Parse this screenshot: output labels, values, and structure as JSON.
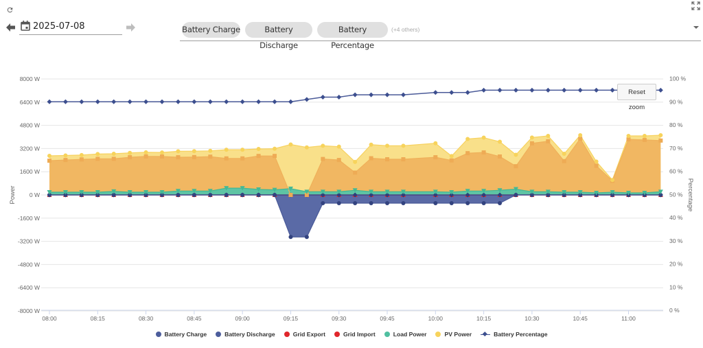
{
  "header": {
    "date": "2025-07-08",
    "chips": [
      "Battery Charge",
      "Battery Discharge",
      "Battery Percentage"
    ],
    "more_label": "(+4 others)",
    "icons": {
      "refresh": "refresh-icon",
      "prev": "arrow-left-icon",
      "calendar": "calendar-icon",
      "next": "arrow-right-icon",
      "dropdown": "chevron-down-icon",
      "fullscreen": "fullscreen-icon"
    }
  },
  "chart": {
    "reset_zoom_label": "Reset zoom"
  },
  "chart_data": {
    "type": "area",
    "title": "",
    "x": [
      "08:00",
      "08:05",
      "08:10",
      "08:15",
      "08:20",
      "08:25",
      "08:30",
      "08:35",
      "08:40",
      "08:45",
      "08:50",
      "08:55",
      "09:00",
      "09:05",
      "09:10",
      "09:15",
      "09:20",
      "09:25",
      "09:30",
      "09:35",
      "09:40",
      "09:45",
      "09:50",
      "09:55",
      "10:00",
      "10:05",
      "10:10",
      "10:15",
      "10:20",
      "10:25",
      "10:30",
      "10:35",
      "10:40",
      "10:45",
      "10:50",
      "10:55",
      "11:00",
      "11:05",
      "11:10"
    ],
    "x_axis": {
      "tick_labels": [
        "08:00",
        "08:15",
        "08:30",
        "08:45",
        "09:00",
        "09:15",
        "09:30",
        "09:45",
        "10:00",
        "10:15",
        "10:30",
        "10:45",
        "11:00"
      ]
    },
    "y_left": {
      "title": "Power",
      "unit": "W",
      "range": [
        -8000,
        8000
      ],
      "ticks": [
        8000,
        6400,
        4800,
        3200,
        1600,
        0,
        -1600,
        -3200,
        -4800,
        -6400,
        -8000
      ],
      "tick_labels": [
        "8000 W",
        "6400 W",
        "4800 W",
        "3200 W",
        "1600 W",
        "0 W",
        "-1600 W",
        "-3200 W",
        "-4800 W",
        "-6400 W",
        "-8000 W"
      ]
    },
    "y_right": {
      "title": "Percentage",
      "unit": "%",
      "range": [
        0,
        100
      ],
      "ticks": [
        100,
        90,
        80,
        70,
        60,
        50,
        40,
        30,
        20,
        10,
        0
      ],
      "tick_labels": [
        "100 %",
        "90 %",
        "80 %",
        "70 %",
        "60 %",
        "50 %",
        "40 %",
        "30 %",
        "20 %",
        "10 %",
        "0 %"
      ]
    },
    "grid": true,
    "legend": {
      "position": "bottom-center"
    },
    "series": [
      {
        "name": "Battery Charge",
        "type": "area",
        "axis": "left",
        "color": "#4c5d9c",
        "values": [
          0,
          0,
          0,
          0,
          0,
          0,
          0,
          0,
          0,
          0,
          0,
          0,
          0,
          0,
          0,
          -2900,
          -2900,
          -570,
          -570,
          -570,
          -570,
          -570,
          -570,
          null,
          -570,
          -570,
          -570,
          -570,
          -570,
          0,
          0,
          0,
          0,
          0,
          0,
          0,
          0,
          0,
          0
        ]
      },
      {
        "name": "Battery Discharge",
        "type": "area",
        "axis": "left",
        "color": "#4c5d9c",
        "values": [
          0,
          0,
          0,
          0,
          0,
          0,
          0,
          0,
          0,
          0,
          0,
          0,
          0,
          0,
          0,
          0,
          0,
          0,
          0,
          0,
          0,
          0,
          0,
          null,
          0,
          0,
          0,
          0,
          0,
          0,
          0,
          0,
          0,
          0,
          0,
          0,
          0,
          0,
          0
        ]
      },
      {
        "name": "Grid Export",
        "type": "area",
        "axis": "left",
        "color": "#e0262b",
        "values": [
          2360,
          2410,
          2450,
          2490,
          2490,
          2600,
          2660,
          2650,
          2600,
          2610,
          2640,
          2520,
          2520,
          2690,
          2690,
          0,
          0,
          2480,
          2410,
          1540,
          2530,
          2460,
          2460,
          null,
          2600,
          2380,
          2880,
          2930,
          2650,
          1980,
          3560,
          3700,
          2330,
          3880,
          2010,
          970,
          3830,
          3790,
          3750
        ]
      },
      {
        "name": "Grid Import",
        "type": "area",
        "axis": "left",
        "color": "#e0262b",
        "values": [
          0,
          0,
          0,
          0,
          0,
          0,
          0,
          0,
          0,
          0,
          0,
          0,
          0,
          0,
          0,
          0,
          0,
          0,
          0,
          0,
          0,
          0,
          0,
          null,
          0,
          0,
          0,
          0,
          0,
          0,
          0,
          0,
          0,
          0,
          0,
          0,
          0,
          0,
          0
        ]
      },
      {
        "name": "Load Power",
        "type": "area",
        "axis": "left",
        "color": "#4fbfa0",
        "values": [
          190,
          190,
          190,
          190,
          240,
          190,
          190,
          190,
          270,
          270,
          270,
          470,
          470,
          380,
          350,
          430,
          220,
          220,
          220,
          320,
          220,
          220,
          220,
          null,
          220,
          190,
          270,
          270,
          320,
          400,
          220,
          220,
          190,
          190,
          140,
          190,
          140,
          140,
          220
        ]
      },
      {
        "name": "PV Power",
        "type": "area",
        "axis": "left",
        "color": "#f7d35c",
        "values": [
          2700,
          2720,
          2750,
          2820,
          2840,
          2900,
          2940,
          2930,
          3010,
          3020,
          3040,
          3120,
          3120,
          3170,
          3190,
          3480,
          3280,
          3390,
          3330,
          2280,
          3470,
          3390,
          3390,
          null,
          3560,
          2680,
          3860,
          3950,
          3670,
          2770,
          3960,
          4070,
          2840,
          4120,
          2300,
          1030,
          4070,
          4070,
          4120
        ]
      },
      {
        "name": "Battery Percentage",
        "type": "line",
        "axis": "right",
        "color": "#3d4f8f",
        "values": [
          90,
          90,
          90,
          90,
          90,
          90,
          90,
          90,
          90,
          90,
          90,
          90,
          90,
          90,
          90,
          90,
          91,
          92,
          92,
          93,
          93,
          93,
          93,
          null,
          94,
          94,
          94,
          95,
          95,
          95,
          95,
          95,
          95,
          95,
          95,
          95,
          95,
          95,
          95
        ]
      }
    ]
  }
}
